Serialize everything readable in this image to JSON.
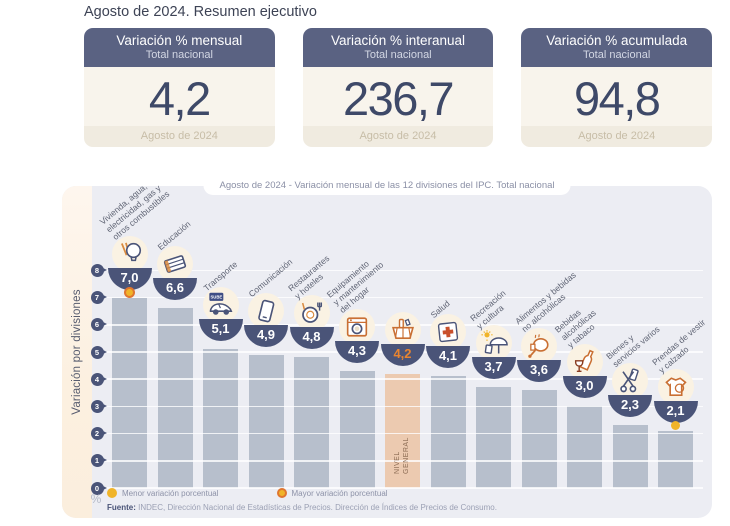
{
  "page_title": "Agosto de 2024. Resumen ejecutivo",
  "cards": [
    {
      "title": "Variación % mensual",
      "subtitle": "Total nacional",
      "value": "4,2",
      "period": "Agosto de 2024"
    },
    {
      "title": "Variación % interanual",
      "subtitle": "Total nacional",
      "value": "236,7",
      "period": "Agosto de 2024"
    },
    {
      "title": "Variación % acumulada",
      "subtitle": "Total nacional",
      "value": "94,8",
      "period": "Agosto de 2024"
    }
  ],
  "chart_data": {
    "type": "bar",
    "title": "Agosto de 2024 - Variación mensual de las 12 divisiones del IPC. Total nacional",
    "ylabel": "Variación por divisiones",
    "unit_label": "%",
    "ylim": [
      0,
      8
    ],
    "yticks": [
      0,
      1,
      2,
      3,
      4,
      5,
      6,
      7,
      8
    ],
    "grid": true,
    "categories": [
      "Vivienda, agua, electricidad, gas y otros combustibles",
      "Educación",
      "Transporte",
      "Comunicación",
      "Restaurantes y hoteles",
      "Equipamiento y mantenimiento del hogar",
      "Nivel general",
      "Salud",
      "Recreación y cultura",
      "Alimentos y bebidas no alcohólicas",
      "Bebidas alcohólicas y tabaco",
      "Bienes y servicios varios",
      "Prendas de vestir y calzado"
    ],
    "label_lines": [
      [
        "Vivienda, agua,",
        "electricidad, gas y",
        "otros combustibles"
      ],
      [
        "Educación"
      ],
      [
        "Transporte"
      ],
      [
        "Comunicación"
      ],
      [
        "Restaurantes",
        "y hoteles"
      ],
      [
        "Equipamiento",
        "y mantenimiento",
        "del hogar"
      ],
      [],
      [
        "Salud"
      ],
      [
        "Recreación",
        "y cultura"
      ],
      [
        "Alimentos y bebidas",
        "no alcohólicas"
      ],
      [
        "Bebidas",
        "alcohólicas",
        "y tabaco"
      ],
      [
        "Bienes y",
        "servicios varios"
      ],
      [
        "Prendas de vestir",
        "y calzado"
      ]
    ],
    "values": [
      7.0,
      6.6,
      5.1,
      4.9,
      4.8,
      4.3,
      4.2,
      4.1,
      3.7,
      3.6,
      3.0,
      2.3,
      2.1
    ],
    "value_labels": [
      "7,0",
      "6,6",
      "5,1",
      "4,9",
      "4,8",
      "4,3",
      "4,2",
      "4,1",
      "3,7",
      "3,6",
      "3,0",
      "2,3",
      "2,1"
    ],
    "icons": [
      "lightbulb-icon",
      "books-icon",
      "car-icon",
      "smartphone-icon",
      "restaurant-icon",
      "washing-machine-icon",
      "shopping-basket-icon",
      "first-aid-icon",
      "beach-umbrella-icon",
      "poultry-icon",
      "bottles-icon",
      "scissors-icon",
      "tshirt-icon"
    ],
    "car_card_label": "SUBE",
    "highlight_index": 6,
    "highlight_label_lines": [
      "NIVEL",
      "GENERAL"
    ],
    "max_marker_index": 0,
    "min_marker_index": 12,
    "legend": [
      {
        "label": "Menor variación porcentual",
        "dot": "min"
      },
      {
        "label": "Mayor variación porcentual",
        "dot": "max"
      }
    ],
    "source_bold": "Fuente:",
    "source_text": " INDEC, Dirección Nacional de Estadísticas de Precios. Dirección de Índices de Precios de Consumo.",
    "colors": {
      "bar": "#b7bfcc",
      "highlight_bar": "#eccab0",
      "bowl": "#4a5478",
      "value_text": "#ffffff",
      "highlight_value_text": "#e8842f",
      "min_dot": "#f0b429",
      "max_dot_ring": "#e0762f",
      "panel_bg": "#ecedf3",
      "card_header": "#5a6282",
      "card_body": "#f8f4ec",
      "big_number": "#3e4968"
    }
  }
}
